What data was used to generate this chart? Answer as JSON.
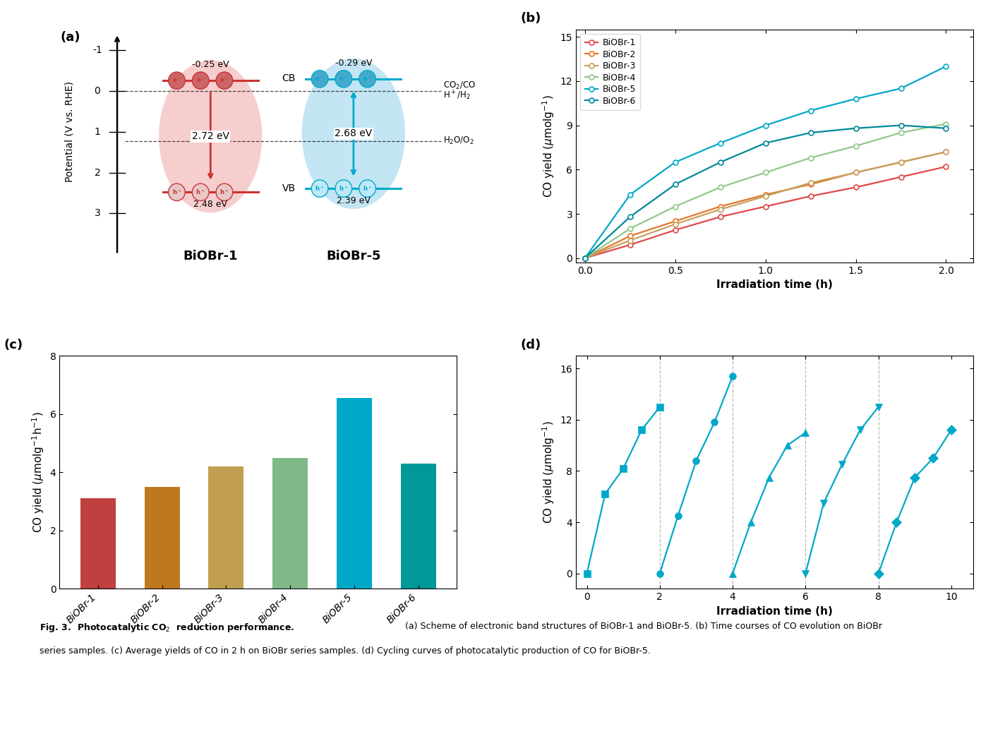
{
  "b_time": [
    0,
    0.25,
    0.5,
    0.75,
    1.0,
    1.25,
    1.5,
    1.75,
    2.0
  ],
  "b_series": [
    {
      "label": "BiOBr-1",
      "color": "#E04848",
      "values": [
        0,
        0.9,
        1.9,
        2.8,
        3.5,
        4.2,
        4.8,
        5.5,
        6.2
      ]
    },
    {
      "label": "BiOBr-2",
      "color": "#E07828",
      "values": [
        0,
        1.5,
        2.5,
        3.5,
        4.3,
        5.0,
        5.8,
        6.5,
        7.2
      ]
    },
    {
      "label": "BiOBr-3",
      "color": "#C8A060",
      "values": [
        0,
        1.2,
        2.3,
        3.3,
        4.2,
        5.1,
        5.8,
        6.5,
        7.2
      ]
    },
    {
      "label": "BiOBr-4",
      "color": "#90C888",
      "values": [
        0,
        2.0,
        3.5,
        4.8,
        5.8,
        6.8,
        7.6,
        8.5,
        9.1
      ]
    },
    {
      "label": "BiOBr-5",
      "color": "#00A8C8",
      "values": [
        0,
        4.3,
        6.5,
        7.8,
        9.0,
        10.0,
        10.8,
        11.5,
        13.0
      ]
    },
    {
      "label": "BiOBr-6",
      "color": "#008899",
      "values": [
        0,
        2.8,
        5.0,
        6.5,
        7.8,
        8.5,
        8.8,
        9.0,
        8.8
      ]
    }
  ],
  "c_categories": [
    "BiOBr-1",
    "BiOBr-2",
    "BiOBr-3",
    "BiOBr-4",
    "BiOBr-5",
    "BiOBr-6"
  ],
  "c_values": [
    3.1,
    3.5,
    4.2,
    4.5,
    6.55,
    4.3
  ],
  "c_colors": [
    "#C04040",
    "#C07820",
    "#C0A050",
    "#80B888",
    "#00A8C8",
    "#009898"
  ],
  "d_cycles": [
    {
      "x": [
        0,
        0.5,
        1.0,
        1.5,
        2.0
      ],
      "y": [
        0,
        6.2,
        8.2,
        11.2,
        13.0
      ],
      "marker": "s"
    },
    {
      "x": [
        2.0,
        2.5,
        3.0,
        3.5,
        4.0
      ],
      "y": [
        0,
        4.5,
        8.8,
        11.8,
        15.4
      ],
      "marker": "o"
    },
    {
      "x": [
        4.0,
        4.5,
        5.0,
        5.5,
        6.0
      ],
      "y": [
        0,
        4.0,
        7.5,
        10.0,
        11.0
      ],
      "marker": "^"
    },
    {
      "x": [
        6.0,
        6.5,
        7.0,
        7.5,
        8.0
      ],
      "y": [
        0,
        5.5,
        8.5,
        11.2,
        13.0
      ],
      "marker": "v"
    },
    {
      "x": [
        8.0,
        8.5,
        9.0,
        9.5,
        10.0
      ],
      "y": [
        0,
        4.0,
        7.5,
        9.0,
        11.2
      ],
      "marker": "D"
    }
  ],
  "d_color": "#00A8C8",
  "d_vlines": [
    2.0,
    4.0,
    6.0,
    8.0
  ],
  "a_cb1": -0.25,
  "a_vb1": 2.48,
  "a_bg1": 2.72,
  "a_cb5": -0.29,
  "a_vb5": 2.39,
  "a_bg5": 2.68,
  "a_refline1": 0.0,
  "a_refline2": 1.23,
  "a_color1": "#F5BEBE",
  "a_color5": "#B0DDF0",
  "a_lc1": "#CC3333",
  "a_lc5": "#00AACC",
  "a_ec1": "#CC6666",
  "a_ec5": "#44AACC"
}
